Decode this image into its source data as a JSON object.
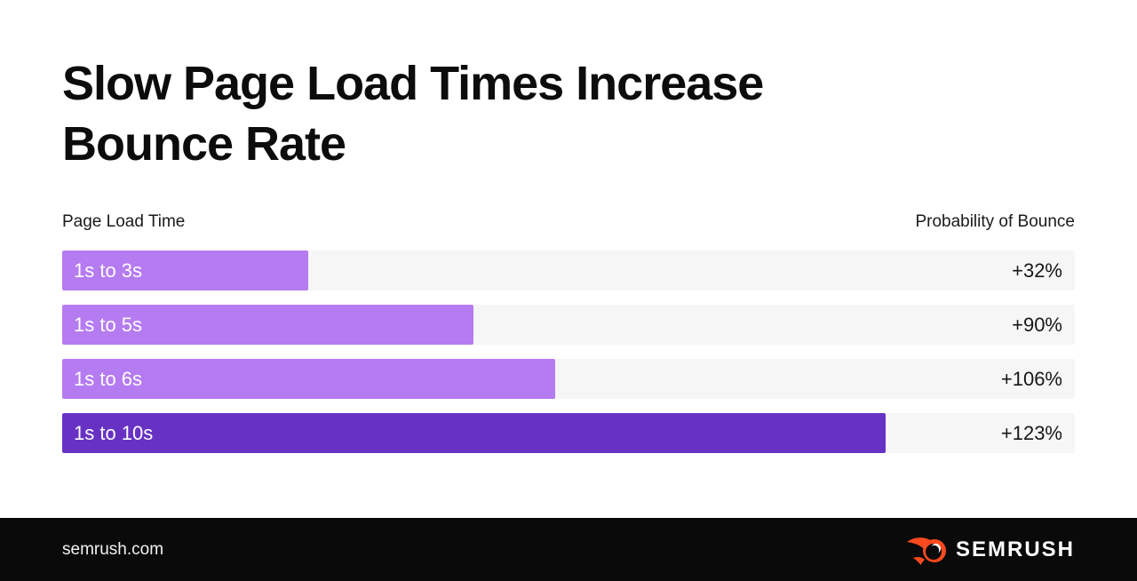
{
  "title": "Slow Page Load Times Increase Bounce Rate",
  "chart_data": {
    "type": "bar",
    "orientation": "horizontal",
    "title": "Slow Page Load Times Increase Bounce Rate",
    "left_header": "Page Load Time",
    "right_header": "Probability of Bounce",
    "categories": [
      "1s to 3s",
      "1s to 5s",
      "1s to 6s",
      "1s to 10s"
    ],
    "values": [
      32,
      90,
      106,
      123
    ],
    "value_labels": [
      "+32%",
      "+90%",
      "+106%",
      "+123%"
    ],
    "bar_seconds": [
      3,
      5,
      6,
      10
    ],
    "bar_width_pct": [
      24.3,
      40.6,
      48.7,
      81.3
    ],
    "bar_colors": [
      "#b57bf0",
      "#b57bf0",
      "#b57bf0",
      "#6732c4"
    ],
    "track_color": "#f6f6f7",
    "legend": "none",
    "grid": "off"
  },
  "footer": {
    "site": "semrush.com",
    "brand": "SEMRUSH",
    "brand_orange": "#ff4a1f",
    "background": "#0a0a0a"
  }
}
